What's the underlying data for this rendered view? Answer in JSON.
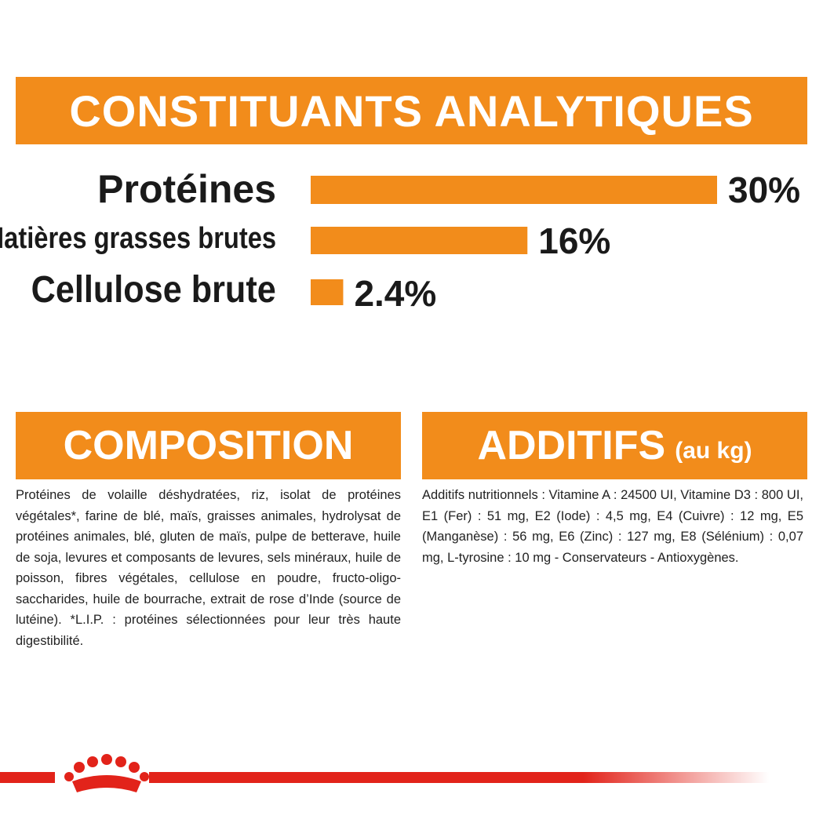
{
  "colors": {
    "accent": "#f28c1b",
    "footer_red": "#e2231a"
  },
  "banners": {
    "title": "CONSTITUANTS ANALYTIQUES",
    "composition": "COMPOSITION",
    "additifs": "ADDITIFS",
    "additifs_unit": "(au kg)"
  },
  "chart_data": {
    "type": "bar",
    "orientation": "horizontal",
    "categories": [
      "Protéines",
      "Matières grasses brutes",
      "Cellulose brute"
    ],
    "values": [
      30,
      16,
      2.4
    ],
    "value_labels": [
      "30%",
      "16%",
      "2.4%"
    ],
    "xlim": [
      0,
      30
    ],
    "grid": false
  },
  "composition_text": "Protéines de volaille déshydratées, riz, isolat de protéines végétales*, farine de blé, maïs, graisses animales, hydrolysat de protéines animales, blé, gluten de maïs, pulpe de betterave, huile de soja, levures et composants de levures, sels minéraux, huile de poisson, fibres végétales, cellulose en poudre, fructo-oligo-saccharides, huile de bourrache, extrait de rose d’Inde (source de lutéine). *L.I.P. : protéines sélectionnées pour leur très haute digestibilité.",
  "additifs_text": "Additifs nutritionnels : Vitamine A : 24500 UI, Vitamine D3 : 800 UI, E1 (Fer) : 51 mg, E2 (Iode) : 4,5 mg, E4 (Cuivre) : 12 mg, E5 (Manganèse) : 56 mg, E6 (Zinc) : 127 mg, E8 (Sélénium) : 0,07 mg, L-tyrosine : 10 mg - Conservateurs - Antioxygènes.",
  "footer": {
    "logo_icon": "crown-logo-icon"
  }
}
